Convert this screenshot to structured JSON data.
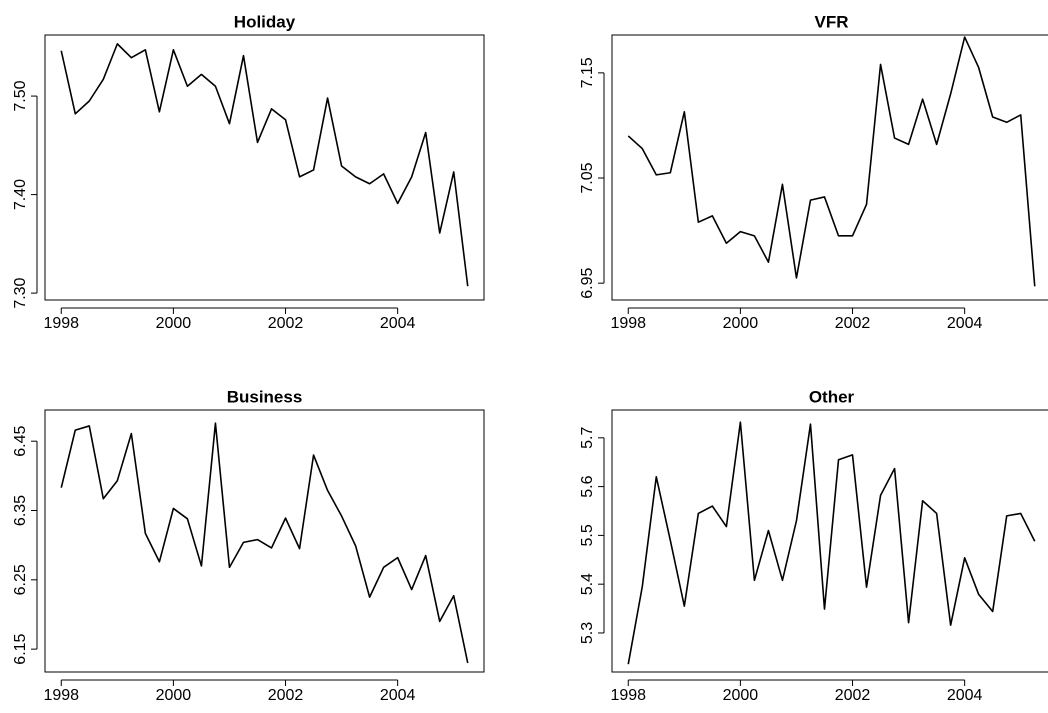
{
  "chart_data": [
    {
      "type": "line",
      "title": "Holiday",
      "color": "#000000",
      "x": [
        1998,
        1998.25,
        1998.5,
        1998.75,
        1999,
        1999.25,
        1999.5,
        1999.75,
        2000,
        2000.25,
        2000.5,
        2000.75,
        2001,
        2001.25,
        2001.5,
        2001.75,
        2002,
        2002.25,
        2002.5,
        2002.75,
        2003,
        2003.25,
        2003.5,
        2003.75,
        2004,
        2004.25,
        2004.5,
        2004.75,
        2005,
        2005.25
      ],
      "values": [
        7.546,
        7.482,
        7.495,
        7.517,
        7.553,
        7.539,
        7.547,
        7.484,
        7.547,
        7.51,
        7.522,
        7.51,
        7.472,
        7.541,
        7.453,
        7.487,
        7.476,
        7.418,
        7.425,
        7.498,
        7.429,
        7.418,
        7.411,
        7.421,
        7.391,
        7.418,
        7.463,
        7.361,
        7.423,
        7.307
      ],
      "xlim": [
        1997.71,
        2005.54
      ],
      "xticks": [
        1998,
        2000,
        2002,
        2004
      ],
      "ylim": [
        7.293,
        7.562
      ],
      "yticks": [
        {
          "value": 7.3,
          "label": "7.30"
        },
        {
          "value": 7.4,
          "label": "7.40"
        },
        {
          "value": 7.5,
          "label": "7.50"
        }
      ]
    },
    {
      "type": "line",
      "title": "VFR",
      "color": "#000000",
      "x": [
        1998,
        1998.25,
        1998.5,
        1998.75,
        1999,
        1999.25,
        1999.5,
        1999.75,
        2000,
        2000.25,
        2000.5,
        2000.75,
        2001,
        2001.25,
        2001.5,
        2001.75,
        2002,
        2002.25,
        2002.5,
        2002.75,
        2003,
        2003.25,
        2003.5,
        2003.75,
        2004,
        2004.25,
        2004.5,
        2004.75,
        2005,
        2005.25
      ],
      "values": [
        7.09,
        7.078,
        7.053,
        7.055,
        7.113,
        7.008,
        7.014,
        6.988,
        6.999,
        6.995,
        6.97,
        7.044,
        6.955,
        7.029,
        7.032,
        6.995,
        6.995,
        7.025,
        7.158,
        7.088,
        7.082,
        7.125,
        7.082,
        7.13,
        7.184,
        7.155,
        7.108,
        7.103,
        7.11,
        6.947
      ],
      "xlim": [
        1997.71,
        2005.54
      ],
      "xticks": [
        1998,
        2000,
        2002,
        2004
      ],
      "ylim": [
        6.934,
        7.186
      ],
      "yticks": [
        6.95,
        7.05,
        7.15
      ]
    },
    {
      "type": "line",
      "title": "Business",
      "color": "#000000",
      "x": [
        1998,
        1998.25,
        1998.5,
        1998.75,
        1999,
        1999.25,
        1999.5,
        1999.75,
        2000,
        2000.25,
        2000.5,
        2000.75,
        2001,
        2001.25,
        2001.5,
        2001.75,
        2002,
        2002.25,
        2002.5,
        2002.75,
        2003,
        2003.25,
        2003.5,
        2003.75,
        2004,
        2004.25,
        2004.5,
        2004.75,
        2005,
        2005.25
      ],
      "values": [
        6.383,
        6.466,
        6.472,
        6.367,
        6.393,
        6.461,
        6.317,
        6.276,
        6.353,
        6.338,
        6.27,
        6.476,
        6.268,
        6.304,
        6.308,
        6.296,
        6.339,
        6.295,
        6.43,
        6.379,
        6.342,
        6.299,
        6.225,
        6.268,
        6.282,
        6.236,
        6.285,
        6.19,
        6.227,
        6.13
      ],
      "xlim": [
        1997.71,
        2005.54
      ],
      "xticks": [
        1998,
        2000,
        2002,
        2004
      ],
      "ylim": [
        6.117,
        6.495
      ],
      "yticks": [
        6.15,
        6.25,
        6.35,
        6.45
      ]
    },
    {
      "type": "line",
      "title": "Other",
      "color": "#000000",
      "x": [
        1998,
        1998.25,
        1998.5,
        1998.75,
        1999,
        1999.25,
        1999.5,
        1999.75,
        2000,
        2000.25,
        2000.5,
        2000.75,
        2001,
        2001.25,
        2001.5,
        2001.75,
        2002,
        2002.25,
        2002.5,
        2002.75,
        2003,
        2003.25,
        2003.5,
        2003.75,
        2004,
        2004.25,
        2004.5,
        2004.75,
        2005,
        2005.25
      ],
      "values": [
        5.236,
        5.395,
        5.62,
        5.49,
        5.355,
        5.545,
        5.56,
        5.518,
        5.732,
        5.408,
        5.51,
        5.408,
        5.53,
        5.728,
        5.349,
        5.655,
        5.665,
        5.394,
        5.582,
        5.637,
        5.321,
        5.571,
        5.545,
        5.316,
        5.454,
        5.379,
        5.344,
        5.54,
        5.545,
        5.488
      ],
      "xlim": [
        1997.71,
        2005.54
      ],
      "xticks": [
        1998,
        2000,
        2002,
        2004
      ],
      "ylim": [
        5.22,
        5.757
      ],
      "yticks": [
        5.3,
        5.4,
        5.5,
        5.6,
        5.7
      ]
    }
  ]
}
